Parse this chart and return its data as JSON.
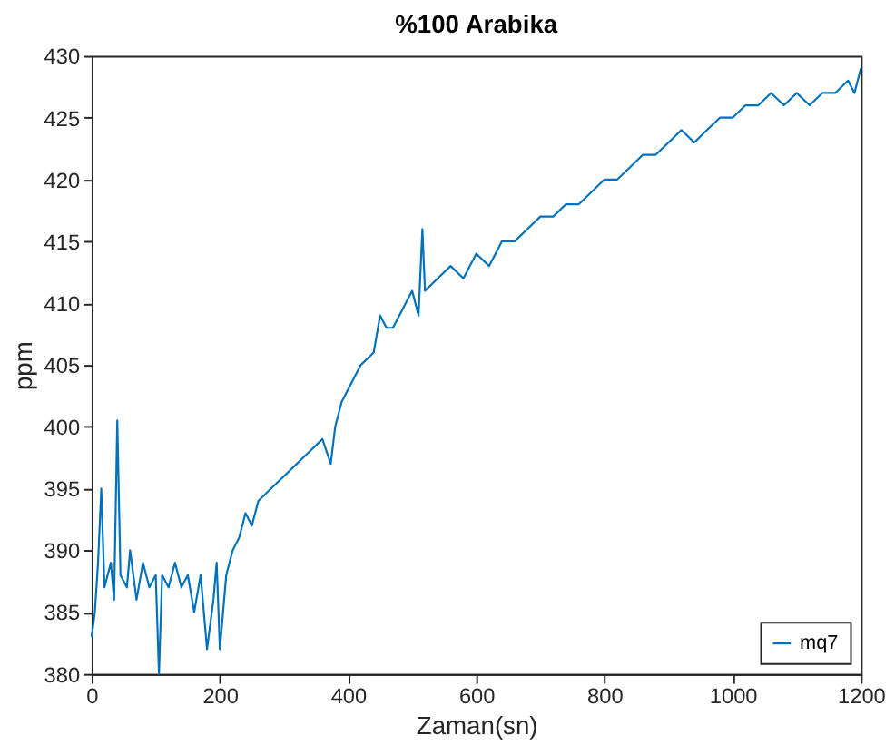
{
  "chart_data": {
    "type": "line",
    "title": "%100 Arabika",
    "xlabel": "Zaman(sn)",
    "ylabel": "ppm",
    "xlim": [
      0,
      1200
    ],
    "xticks": [
      0,
      200,
      400,
      600,
      800,
      1000,
      1200
    ],
    "ylim": [
      380,
      430
    ],
    "yticks": [
      380,
      385,
      390,
      395,
      400,
      405,
      410,
      415,
      420,
      425,
      430
    ],
    "legend": "bottom right",
    "grid": false,
    "marker": "none",
    "line_style": "solid",
    "series": [
      {
        "name": "mq7",
        "color": "#0072bd",
        "x": [
          0,
          5,
          10,
          15,
          20,
          30,
          35,
          40,
          45,
          55,
          60,
          70,
          80,
          90,
          100,
          105,
          110,
          120,
          130,
          140,
          150,
          160,
          170,
          180,
          190,
          195,
          200,
          210,
          220,
          230,
          240,
          250,
          260,
          280,
          300,
          320,
          340,
          360,
          373,
          380,
          390,
          400,
          420,
          440,
          450,
          460,
          470,
          480,
          490,
          500,
          510,
          516,
          520,
          540,
          560,
          580,
          600,
          620,
          640,
          660,
          680,
          700,
          720,
          740,
          760,
          780,
          800,
          820,
          840,
          860,
          880,
          900,
          920,
          940,
          960,
          980,
          1000,
          1020,
          1040,
          1060,
          1080,
          1100,
          1120,
          1140,
          1160,
          1180,
          1190,
          1200
        ],
        "values": [
          383,
          385,
          389,
          395,
          387,
          389,
          386,
          400.5,
          388,
          387,
          390,
          386,
          389,
          387,
          388,
          380,
          388,
          387,
          389,
          387,
          388,
          385,
          388,
          382,
          386,
          389,
          382,
          388,
          390,
          391,
          393,
          392,
          394,
          395,
          396,
          397,
          398,
          399,
          397,
          400,
          402,
          403,
          405,
          406,
          409,
          408,
          408,
          409,
          410,
          411,
          409,
          416,
          411,
          412,
          413,
          412,
          414,
          413,
          415,
          415,
          416,
          417,
          417,
          418,
          418,
          419,
          420,
          420,
          421,
          422,
          422,
          423,
          424,
          423,
          424,
          425,
          425,
          426,
          426,
          427,
          426,
          427,
          426,
          427,
          427,
          428,
          427,
          429
        ]
      }
    ]
  }
}
